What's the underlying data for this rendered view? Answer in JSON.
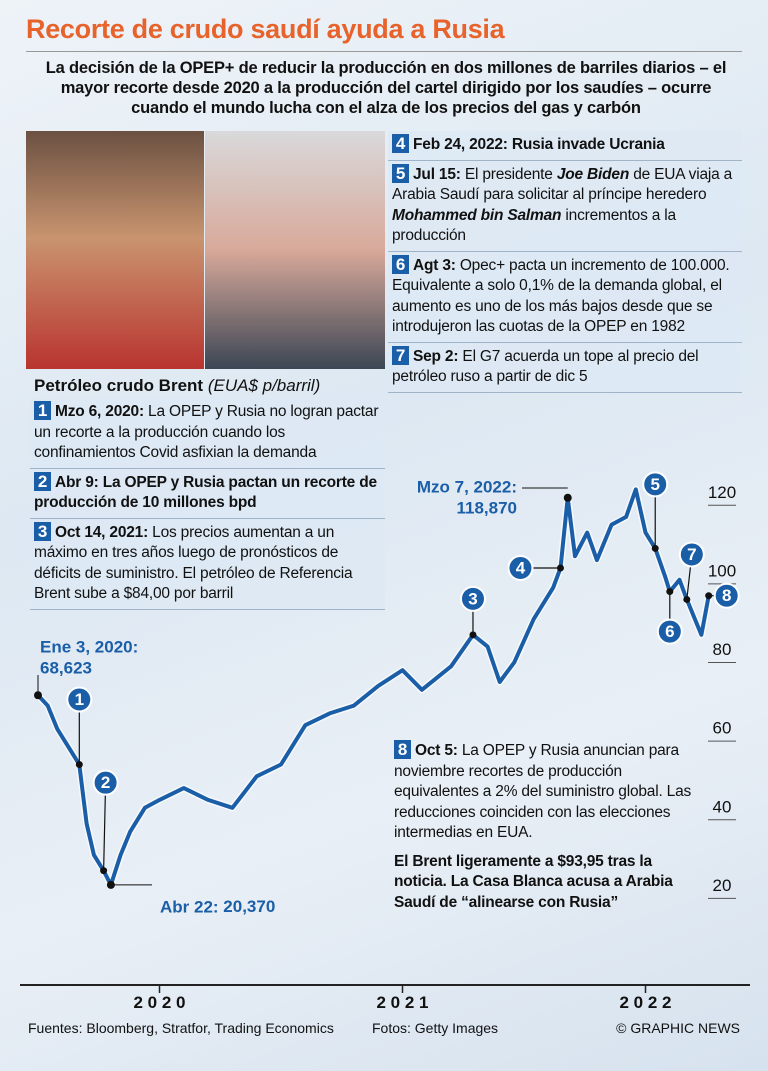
{
  "header": {
    "title": "Recorte de crudo saudí ayuda a Rusia",
    "subtitle": "La decisión de la OPEP+ de reducir la producción en dos millones de barriles diarios – el mayor recorte desde 2020 a la producción del cartel dirigido por los saudíes – ocurre cuando el mundo lucha con el alza de los precios del gas y carbón"
  },
  "chart_data": {
    "type": "line",
    "title": "Petróleo crudo Brent",
    "unit": "(EUA$ p/barril)",
    "x": [
      2020.0,
      2020.04,
      2020.08,
      2020.12,
      2020.17,
      2020.2,
      2020.23,
      2020.27,
      2020.3,
      2020.34,
      2020.38,
      2020.44,
      2020.5,
      2020.6,
      2020.7,
      2020.8,
      2020.9,
      2021.0,
      2021.1,
      2021.2,
      2021.3,
      2021.4,
      2021.5,
      2021.58,
      2021.7,
      2021.79,
      2021.85,
      2021.9,
      2021.96,
      2022.04,
      2022.12,
      2022.15,
      2022.18,
      2022.21,
      2022.26,
      2022.3,
      2022.36,
      2022.42,
      2022.46,
      2022.5,
      2022.54,
      2022.58,
      2022.6,
      2022.64,
      2022.67,
      2022.71,
      2022.73,
      2022.76
    ],
    "series": [
      {
        "name": "Brent",
        "color": "#1a5ea8",
        "values": [
          68.623,
          66,
          60,
          56,
          51,
          36,
          28,
          24,
          20.37,
          28,
          34,
          40,
          42,
          45,
          42,
          40,
          48,
          51,
          61,
          64,
          66,
          71,
          75,
          70,
          76,
          84,
          81,
          72,
          77,
          88,
          96,
          101,
          118.87,
          104,
          110,
          103,
          112,
          114,
          121,
          110,
          106,
          99,
          95,
          98,
          93,
          87,
          84,
          93.95
        ],
        "value_labels": [
          "68,623",
          null,
          null,
          null,
          null,
          null,
          null,
          null,
          "20,370",
          null,
          null,
          null,
          null,
          null,
          null,
          null,
          null,
          null,
          null,
          null,
          null,
          null,
          null,
          null,
          null,
          null,
          null,
          null,
          null,
          null,
          null,
          null,
          "118,870",
          null,
          null,
          null,
          null,
          null,
          null,
          null,
          null,
          null,
          null,
          null,
          null,
          null,
          null,
          null
        ]
      }
    ],
    "annotations": [
      "Ene 3, 2020:",
      "Abr 22:",
      "Mzo 7, 2022:"
    ],
    "xlim": [
      2020,
      2022.93
    ],
    "xticks": [
      {
        "value": 2020.5,
        "label": "2 0 2 0"
      },
      {
        "value": 2021.5,
        "label": "2 0 2 1"
      },
      {
        "value": 2022.5,
        "label": "2 0 2 2"
      }
    ],
    "ylim": [
      0,
      130
    ],
    "yticks": [
      20,
      40,
      60,
      80,
      100,
      120
    ]
  },
  "events": [
    {
      "num": "1",
      "date": "Mzo 6, 2020:",
      "text": [
        " La OPEP y Rusia no logran pactar un recorte a la producción cuando los confinamientos Covid asfixian la demanda"
      ]
    },
    {
      "num": "2",
      "date": "Abr 9:",
      "bold": true,
      "text": [
        " La OPEP y Rusia pactan un recorte de producción de 10 millones bpd"
      ]
    },
    {
      "num": "3",
      "date": "Oct 14, 2021:",
      "text": [
        " Los precios aumentan a un máximo en tres años luego de pronósticos de déficits de suministro. El petróleo de Referencia Brent sube a $84,00 por barril"
      ]
    },
    {
      "num": "4",
      "date": "Feb 24, 2022:",
      "bold": true,
      "text": [
        " Rusia invade Ucrania"
      ]
    },
    {
      "num": "5",
      "date": "Jul 15:",
      "text": [
        " El presidente ",
        {
          "em": "Joe Biden"
        },
        " de EUA viaja a Arabia Saudí para solicitar al príncipe heredero ",
        {
          "em": "Mohammed bin Salman"
        },
        " incrementos a la producción"
      ]
    },
    {
      "num": "6",
      "date": "Agt 3:",
      "text": [
        " Opec+ pacta un incremento de 100.000. Equivalente a solo 0,1% de la demanda global, el aumento es uno de los más bajos desde que se introdujeron las cuotas de la OPEP en 1982"
      ]
    },
    {
      "num": "7",
      "date": "Sep 2:",
      "text": [
        " El G7 acuerda un tope al precio del petróleo ruso a partir de dic 5"
      ]
    },
    {
      "num": "8",
      "date": "Oct 5:",
      "text": [
        " La OPEP y Rusia anuncian para noviembre recortes de producción equivalentes a 2% del suministro global. Las reducciones coinciden con las elecciones intermedias en EUA."
      ],
      "note": "El Brent ligeramente a $93,95 tras la noticia. La Casa Blanca acusa a Arabia Saudí de “alinearse con Rusia”"
    }
  ],
  "footer": {
    "source": "Fuentes: Bloomberg, Stratfor, Trading Economics",
    "photos": "Fotos: Getty Images",
    "credit": "© GRAPHIC NEWS"
  }
}
